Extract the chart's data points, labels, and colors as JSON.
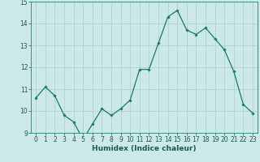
{
  "x": [
    0,
    1,
    2,
    3,
    4,
    5,
    6,
    7,
    8,
    9,
    10,
    11,
    12,
    13,
    14,
    15,
    16,
    17,
    18,
    19,
    20,
    21,
    22,
    23
  ],
  "y": [
    10.6,
    11.1,
    10.7,
    9.8,
    9.5,
    8.7,
    9.4,
    10.1,
    9.8,
    10.1,
    10.5,
    11.9,
    11.9,
    13.1,
    14.3,
    14.6,
    13.7,
    13.5,
    13.8,
    13.3,
    12.8,
    11.8,
    10.3,
    9.9
  ],
  "xlabel": "Humidex (Indice chaleur)",
  "ylim": [
    9,
    15
  ],
  "xlim_min": -0.5,
  "xlim_max": 23.5,
  "yticks": [
    9,
    10,
    11,
    12,
    13,
    14,
    15
  ],
  "xticks": [
    0,
    1,
    2,
    3,
    4,
    5,
    6,
    7,
    8,
    9,
    10,
    11,
    12,
    13,
    14,
    15,
    16,
    17,
    18,
    19,
    20,
    21,
    22,
    23
  ],
  "line_color": "#1a7a6e",
  "marker": "D",
  "marker_size": 1.8,
  "bg_color": "#cce8e8",
  "grid_color": "#aacece",
  "axis_color": "#2d7a72",
  "tick_color": "#1a5a54",
  "label_color": "#1a5a54",
  "xlabel_fontsize": 6.5,
  "tick_fontsize": 5.5,
  "linewidth": 0.9
}
